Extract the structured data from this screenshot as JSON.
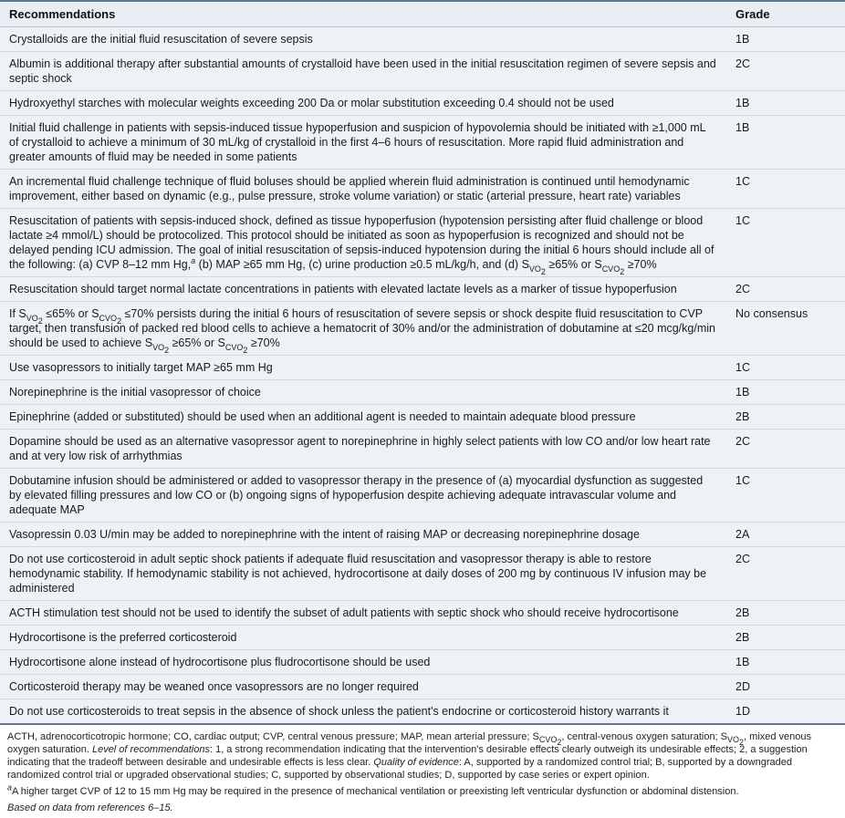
{
  "table": {
    "header": {
      "col1": "Recommendations",
      "col2": "Grade"
    },
    "rows": [
      {
        "rec": "Crystalloids are the initial fluid resuscitation of severe sepsis",
        "grade": "1B"
      },
      {
        "rec": "Albumin is additional therapy after substantial amounts of crystalloid have been used in the initial resuscitation regimen of severe sepsis and septic shock",
        "grade": "2C"
      },
      {
        "rec": "Hydroxyethyl starches with molecular weights exceeding 200 Da or molar substitution exceeding 0.4 should not be used",
        "grade": "1B"
      },
      {
        "rec": "Initial fluid challenge in patients with sepsis-induced tissue hypoperfusion and suspicion of hypovolemia should be initiated with ≥1,000 mL of crystalloid to achieve a minimum of 30 mL/kg of crystalloid in the first 4–6 hours of resuscitation. More rapid fluid administration and greater amounts of fluid may be needed in some patients",
        "grade": "1B"
      },
      {
        "rec": "An incremental fluid challenge technique of fluid boluses should be applied wherein fluid administration is continued until hemodynamic improvement, either based on dynamic (e.g., pulse pressure, stroke volume variation) or static (arterial pressure, heart rate) variables",
        "grade": "1C"
      },
      {
        "rec": "Resuscitation of patients with sepsis-induced shock, defined as tissue hypoperfusion (hypotension persisting after fluid challenge or blood lactate ≥4 mmol/L) should be protocolized. This protocol should be initiated as soon as hypoperfusion is recognized and should not be delayed pending ICU admission. The goal of initial resuscitation of sepsis-induced hypotension during the initial 6 hours should include all of the following: (a) CVP 8–12 mm Hg,<sup>a</sup> (b) MAP ≥65 mm Hg, (c) urine production ≥0.5 mL/kg/h, and (d) S<sub>VO<sub>2</sub></sub> ≥65% or S<sub>CVO<sub>2</sub></sub> ≥70%",
        "grade": "1C",
        "html": true
      },
      {
        "rec": "Resuscitation should target normal lactate concentrations in patients with elevated lactate levels as a marker of tissue hypoperfusion",
        "grade": "2C"
      },
      {
        "rec": "If S<sub>VO<sub>2</sub></sub> ≤65% or S<sub>CVO<sub>2</sub></sub> ≤70% persists during the initial 6 hours of resuscitation of severe sepsis or shock despite fluid resuscitation to CVP target, then transfusion of packed red blood cells to achieve a hematocrit of 30% and/or the administration of dobutamine at ≤20 mcg/kg/min should be used to achieve S<sub>VO<sub>2</sub></sub> ≥65% or S<sub>CVO<sub>2</sub></sub> ≥70%",
        "grade": "No consensus",
        "html": true
      },
      {
        "rec": "Use vasopressors to initially target MAP ≥65 mm Hg",
        "grade": "1C"
      },
      {
        "rec": "Norepinephrine is the initial vasopressor of choice",
        "grade": "1B"
      },
      {
        "rec": "Epinephrine (added or substituted) should be used when an additional agent is needed to maintain adequate blood pressure",
        "grade": "2B"
      },
      {
        "rec": "Dopamine should be used as an alternative vasopressor agent to norepinephrine in highly select patients with low CO and/or low heart rate and at very low risk of arrhythmias",
        "grade": "2C"
      },
      {
        "rec": "Dobutamine infusion should be administered or added to vasopressor therapy in the presence of (a) myocardial dysfunction as suggested by elevated filling pressures and low CO or (b) ongoing signs of hypoperfusion despite achieving adequate intravascular volume and adequate MAP",
        "grade": "1C"
      },
      {
        "rec": "Vasopressin 0.03 U/min may be added to norepinephrine with the intent of raising MAP or decreasing norepinephrine dosage",
        "grade": "2A"
      },
      {
        "rec": "Do not use corticosteroid in adult septic shock patients if adequate fluid resuscitation and vasopressor therapy is able to restore hemodynamic stability. If hemodynamic stability is not achieved, hydrocortisone at daily doses of 200 mg by continuous IV infusion may be administered",
        "grade": "2C"
      },
      {
        "rec": "ACTH stimulation test should not be used to identify the subset of adult patients with septic shock who should receive hydrocortisone",
        "grade": "2B"
      },
      {
        "rec": "Hydrocortisone is the preferred corticosteroid",
        "grade": "2B"
      },
      {
        "rec": "Hydrocortisone alone instead of hydrocortisone plus fludrocortisone should be used",
        "grade": "1B"
      },
      {
        "rec": "Corticosteroid therapy may be weaned once vasopressors are no longer required",
        "grade": "2D"
      },
      {
        "rec": "Do not use corticosteroids to treat sepsis in the absence of shock unless the patient's endocrine or corticosteroid history warrants it",
        "grade": "1D"
      }
    ]
  },
  "footnotes": {
    "abbrev": "ACTH, adrenocorticotropic hormone; CO, cardiac output; CVP, central venous pressure; MAP, mean arterial pressure; S<sub>CVO<sub>2</sub></sub>, central-venous oxygen saturation; S<sub>VO<sub>2</sub></sub>, mixed venous oxygen saturation. <i>Level of recommendations</i>: 1, a strong recommendation indicating that the intervention's desirable effects clearly outweigh its undesirable effects; 2, a suggestion indicating that the tradeoff between desirable and undesirable effects is less clear. <i>Quality of evidence</i>: A, supported by a randomized control trial; B, supported by a downgraded randomized control trial or upgraded observational studies; C, supported by observational studies; D, supported by case series or expert opinion.",
    "noteA": "<sup>a</sup>A higher target CVP of 12 to 15 mm Hg may be required in the presence of mechanical ventilation or preexisting left ventricular dysfunction or abdominal distension.",
    "source": "Based on data from references 6–15."
  }
}
